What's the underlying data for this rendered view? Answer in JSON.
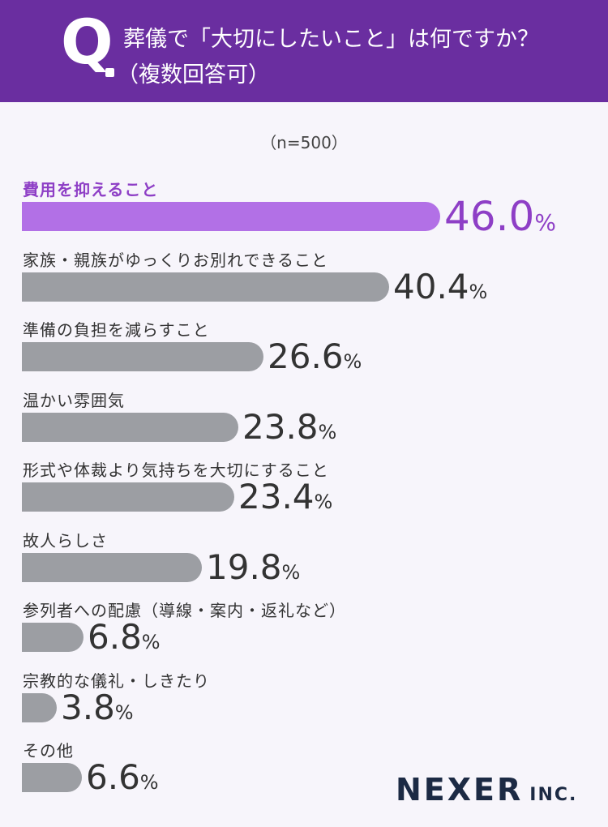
{
  "header": {
    "q_letter": "Q",
    "title_line1": "葬儀で「大切にしたいこと」は何ですか？",
    "title_line2": "（複数回答可）"
  },
  "sample_note": "（n=500）",
  "chart_data": {
    "type": "bar",
    "orientation": "horizontal",
    "title": "葬儀で「大切にしたいこと」は何ですか？（複数回答可）",
    "unit": "%",
    "categories": [
      "費用を抑えること",
      "家族・親族がゆっくりお別れできること",
      "準備の負担を減らすこと",
      "温かい雰囲気",
      "形式や体裁より気持ちを大切にすること",
      "故人らしさ",
      "参列者への配慮（導線・案内・返礼など）",
      "宗教的な儀礼・しきたり",
      "その他"
    ],
    "values": [
      46.0,
      40.4,
      26.6,
      23.8,
      23.4,
      19.8,
      6.8,
      3.8,
      6.6
    ],
    "value_labels": [
      "46.0",
      "40.4",
      "26.6",
      "23.8",
      "23.4",
      "19.8",
      "6.8",
      "3.8",
      "6.6"
    ],
    "highlight_index": 0,
    "colors": {
      "highlight": "#b270e6",
      "highlight_text": "#8e3fc6",
      "default": "#9c9ea3"
    },
    "grid": false,
    "legend": "none"
  },
  "branding": {
    "logo_main": "NEXER",
    "logo_sub": "INC."
  }
}
